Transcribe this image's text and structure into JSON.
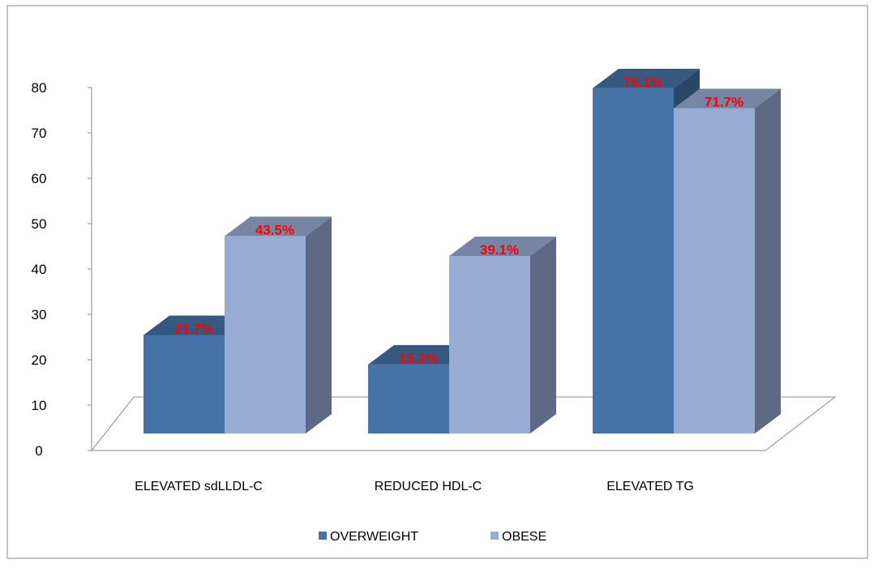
{
  "chart_data": {
    "type": "bar",
    "three_d": true,
    "categories": [
      "ELEVATED sdLLDL-C",
      "REDUCED HDL-C",
      "ELEVATED TG"
    ],
    "series": [
      {
        "name": "OVERWEIGHT",
        "values": [
          21.7,
          15.2,
          76.1
        ],
        "labels": [
          "21.7%",
          "15.2%",
          "76.1%"
        ],
        "color": "#4572a7"
      },
      {
        "name": "OBESE",
        "values": [
          43.5,
          39.1,
          71.7
        ],
        "labels": [
          "43.5%",
          "39.1%",
          "71.7%"
        ],
        "color": "#98abd3"
      }
    ],
    "ylim": [
      0,
      80
    ],
    "yticks": [
      "0",
      "10",
      "20",
      "30",
      "40",
      "50",
      "60",
      "70",
      "80"
    ],
    "grid": false,
    "legend": "bottom",
    "data_label_color": "#ff0000"
  }
}
